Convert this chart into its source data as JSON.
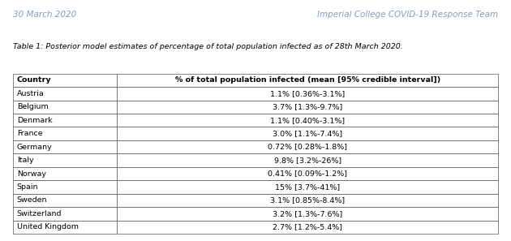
{
  "date_text": "30 March 2020",
  "institution_text": "Imperial College COVID-19 Response Team",
  "caption": "Table 1: Posterior model estimates of percentage of total population infected as of 28th March 2020.",
  "col_headers": [
    "Country",
    "% of total population infected (mean [95% credible interval])"
  ],
  "rows": [
    [
      "Austria",
      "1.1% [0.36%-3.1%]"
    ],
    [
      "Belgium",
      "3.7% [1.3%-9.7%]"
    ],
    [
      "Denmark",
      "1.1% [0.40%-3.1%]"
    ],
    [
      "France",
      "3.0% [1.1%-7.4%]"
    ],
    [
      "Germany",
      "0.72% [0.28%-1.8%]"
    ],
    [
      "Italy",
      "9.8% [3.2%-26%]"
    ],
    [
      "Norway",
      "0.41% [0.09%-1.2%]"
    ],
    [
      "Spain",
      "15% [3.7%-41%]"
    ],
    [
      "Sweden",
      "3.1% [0.85%-8.4%]"
    ],
    [
      "Switzerland",
      "3.2% [1.3%-7.6%]"
    ],
    [
      "United Kingdom",
      "2.7% [1.2%-5.4%]"
    ]
  ],
  "date_color": "#7AA0C8",
  "institution_color": "#7AA0C8",
  "bg_color": "#ffffff",
  "table_bg": "#ffffff",
  "border_color": "#555555",
  "text_color": "#000000",
  "figsize": [
    6.3,
    2.97
  ],
  "dpi": 100
}
